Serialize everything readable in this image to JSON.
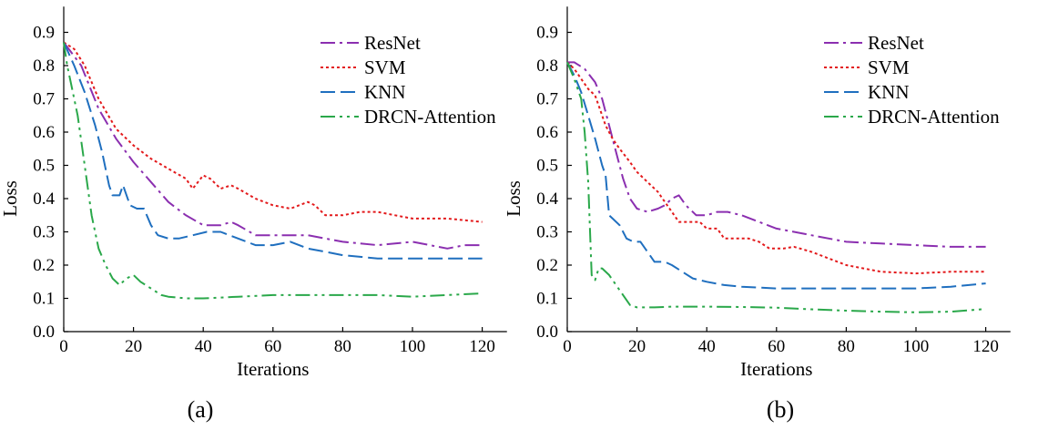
{
  "chart_data": [
    {
      "type": "line",
      "caption": "(a)",
      "xlabel": "Iterations",
      "ylabel": "Loss",
      "xlim": [
        0,
        125
      ],
      "ylim": [
        0,
        0.95
      ],
      "xticks": [
        0,
        20,
        40,
        60,
        80,
        100,
        120
      ],
      "yticks": [
        0.0,
        0.1,
        0.2,
        0.3,
        0.4,
        0.5,
        0.6,
        0.7,
        0.8,
        0.9
      ],
      "legend_position": "top-right",
      "series": [
        {
          "name": "ResNet",
          "color": "#8b2fb0",
          "dash": "16,5,3,5",
          "points": [
            [
              0,
              0.87
            ],
            [
              5,
              0.8
            ],
            [
              10,
              0.67
            ],
            [
              15,
              0.58
            ],
            [
              20,
              0.51
            ],
            [
              25,
              0.45
            ],
            [
              30,
              0.39
            ],
            [
              35,
              0.35
            ],
            [
              40,
              0.32
            ],
            [
              45,
              0.32
            ],
            [
              48,
              0.33
            ],
            [
              50,
              0.32
            ],
            [
              55,
              0.29
            ],
            [
              60,
              0.29
            ],
            [
              65,
              0.29
            ],
            [
              70,
              0.29
            ],
            [
              75,
              0.28
            ],
            [
              80,
              0.27
            ],
            [
              90,
              0.26
            ],
            [
              100,
              0.27
            ],
            [
              105,
              0.26
            ],
            [
              110,
              0.25
            ],
            [
              115,
              0.26
            ],
            [
              120,
              0.26
            ]
          ]
        },
        {
          "name": "SVM",
          "color": "#e31a1c",
          "dash": "3,3",
          "points": [
            [
              0,
              0.87
            ],
            [
              3,
              0.85
            ],
            [
              6,
              0.8
            ],
            [
              10,
              0.7
            ],
            [
              15,
              0.61
            ],
            [
              20,
              0.56
            ],
            [
              25,
              0.52
            ],
            [
              30,
              0.49
            ],
            [
              35,
              0.46
            ],
            [
              37,
              0.43
            ],
            [
              40,
              0.47
            ],
            [
              42,
              0.46
            ],
            [
              45,
              0.43
            ],
            [
              48,
              0.44
            ],
            [
              50,
              0.43
            ],
            [
              55,
              0.4
            ],
            [
              60,
              0.38
            ],
            [
              65,
              0.37
            ],
            [
              70,
              0.39
            ],
            [
              72,
              0.38
            ],
            [
              75,
              0.35
            ],
            [
              80,
              0.35
            ],
            [
              85,
              0.36
            ],
            [
              90,
              0.36
            ],
            [
              95,
              0.35
            ],
            [
              100,
              0.34
            ],
            [
              110,
              0.34
            ],
            [
              120,
              0.33
            ]
          ]
        },
        {
          "name": "KNN",
          "color": "#1f6fbf",
          "dash": "16,6",
          "points": [
            [
              0,
              0.87
            ],
            [
              3,
              0.8
            ],
            [
              6,
              0.72
            ],
            [
              9,
              0.62
            ],
            [
              11,
              0.54
            ],
            [
              13,
              0.44
            ],
            [
              14,
              0.41
            ],
            [
              16,
              0.41
            ],
            [
              17,
              0.44
            ],
            [
              19,
              0.38
            ],
            [
              21,
              0.37
            ],
            [
              23,
              0.37
            ],
            [
              25,
              0.32
            ],
            [
              27,
              0.29
            ],
            [
              30,
              0.28
            ],
            [
              33,
              0.28
            ],
            [
              37,
              0.29
            ],
            [
              41,
              0.3
            ],
            [
              45,
              0.3
            ],
            [
              50,
              0.28
            ],
            [
              55,
              0.26
            ],
            [
              60,
              0.26
            ],
            [
              65,
              0.27
            ],
            [
              70,
              0.25
            ],
            [
              75,
              0.24
            ],
            [
              80,
              0.23
            ],
            [
              90,
              0.22
            ],
            [
              100,
              0.22
            ],
            [
              110,
              0.22
            ],
            [
              120,
              0.22
            ]
          ]
        },
        {
          "name": "DRCN-Attention",
          "color": "#2aa84a",
          "dash": "16,5,3,5,3,5",
          "points": [
            [
              0,
              0.87
            ],
            [
              1,
              0.8
            ],
            [
              2,
              0.75
            ],
            [
              4,
              0.65
            ],
            [
              6,
              0.5
            ],
            [
              8,
              0.35
            ],
            [
              10,
              0.25
            ],
            [
              12,
              0.2
            ],
            [
              14,
              0.16
            ],
            [
              16,
              0.14
            ],
            [
              18,
              0.16
            ],
            [
              20,
              0.17
            ],
            [
              22,
              0.15
            ],
            [
              25,
              0.13
            ],
            [
              28,
              0.11
            ],
            [
              30,
              0.105
            ],
            [
              35,
              0.1
            ],
            [
              40,
              0.1
            ],
            [
              50,
              0.105
            ],
            [
              60,
              0.11
            ],
            [
              70,
              0.11
            ],
            [
              80,
              0.11
            ],
            [
              90,
              0.11
            ],
            [
              100,
              0.105
            ],
            [
              110,
              0.11
            ],
            [
              120,
              0.115
            ]
          ]
        }
      ]
    },
    {
      "type": "line",
      "caption": "(b)",
      "xlabel": "Iterations",
      "ylabel": "Loss",
      "xlim": [
        0,
        125
      ],
      "ylim": [
        0,
        0.95
      ],
      "xticks": [
        0,
        20,
        40,
        60,
        80,
        100,
        120
      ],
      "yticks": [
        0.0,
        0.1,
        0.2,
        0.3,
        0.4,
        0.5,
        0.6,
        0.7,
        0.8,
        0.9
      ],
      "legend_position": "top-right",
      "series": [
        {
          "name": "ResNet",
          "color": "#8b2fb0",
          "dash": "16,5,3,5",
          "points": [
            [
              0,
              0.81
            ],
            [
              2,
              0.81
            ],
            [
              5,
              0.79
            ],
            [
              8,
              0.75
            ],
            [
              10,
              0.7
            ],
            [
              12,
              0.62
            ],
            [
              14,
              0.54
            ],
            [
              16,
              0.46
            ],
            [
              18,
              0.4
            ],
            [
              20,
              0.37
            ],
            [
              23,
              0.36
            ],
            [
              26,
              0.37
            ],
            [
              28,
              0.38
            ],
            [
              30,
              0.4
            ],
            [
              32,
              0.41
            ],
            [
              34,
              0.38
            ],
            [
              37,
              0.35
            ],
            [
              40,
              0.35
            ],
            [
              43,
              0.36
            ],
            [
              46,
              0.36
            ],
            [
              50,
              0.35
            ],
            [
              55,
              0.33
            ],
            [
              60,
              0.31
            ],
            [
              65,
              0.3
            ],
            [
              70,
              0.29
            ],
            [
              80,
              0.27
            ],
            [
              90,
              0.265
            ],
            [
              100,
              0.26
            ],
            [
              110,
              0.255
            ],
            [
              120,
              0.255
            ]
          ]
        },
        {
          "name": "SVM",
          "color": "#e31a1c",
          "dash": "3,3",
          "points": [
            [
              0,
              0.81
            ],
            [
              2,
              0.79
            ],
            [
              4,
              0.76
            ],
            [
              6,
              0.73
            ],
            [
              8,
              0.71
            ],
            [
              9,
              0.68
            ],
            [
              11,
              0.62
            ],
            [
              13,
              0.58
            ],
            [
              15,
              0.55
            ],
            [
              18,
              0.51
            ],
            [
              20,
              0.48
            ],
            [
              23,
              0.45
            ],
            [
              26,
              0.42
            ],
            [
              28,
              0.39
            ],
            [
              30,
              0.36
            ],
            [
              32,
              0.33
            ],
            [
              35,
              0.33
            ],
            [
              38,
              0.33
            ],
            [
              40,
              0.31
            ],
            [
              43,
              0.31
            ],
            [
              45,
              0.28
            ],
            [
              48,
              0.28
            ],
            [
              52,
              0.28
            ],
            [
              55,
              0.27
            ],
            [
              58,
              0.25
            ],
            [
              62,
              0.25
            ],
            [
              65,
              0.255
            ],
            [
              70,
              0.24
            ],
            [
              75,
              0.22
            ],
            [
              80,
              0.2
            ],
            [
              90,
              0.18
            ],
            [
              100,
              0.175
            ],
            [
              110,
              0.18
            ],
            [
              120,
              0.18
            ]
          ]
        },
        {
          "name": "KNN",
          "color": "#1f6fbf",
          "dash": "16,6",
          "points": [
            [
              0,
              0.81
            ],
            [
              2,
              0.77
            ],
            [
              4,
              0.72
            ],
            [
              6,
              0.65
            ],
            [
              8,
              0.58
            ],
            [
              10,
              0.5
            ],
            [
              11,
              0.47
            ],
            [
              12,
              0.35
            ],
            [
              13,
              0.34
            ],
            [
              15,
              0.32
            ],
            [
              17,
              0.28
            ],
            [
              19,
              0.27
            ],
            [
              21,
              0.27
            ],
            [
              23,
              0.24
            ],
            [
              25,
              0.21
            ],
            [
              28,
              0.21
            ],
            [
              30,
              0.2
            ],
            [
              33,
              0.18
            ],
            [
              36,
              0.16
            ],
            [
              40,
              0.15
            ],
            [
              45,
              0.14
            ],
            [
              50,
              0.135
            ],
            [
              60,
              0.13
            ],
            [
              70,
              0.13
            ],
            [
              80,
              0.13
            ],
            [
              90,
              0.13
            ],
            [
              100,
              0.13
            ],
            [
              110,
              0.135
            ],
            [
              120,
              0.145
            ]
          ]
        },
        {
          "name": "DRCN-Attention",
          "color": "#2aa84a",
          "dash": "16,5,3,5,3,5",
          "points": [
            [
              0,
              0.81
            ],
            [
              2,
              0.76
            ],
            [
              4,
              0.7
            ],
            [
              5,
              0.6
            ],
            [
              6,
              0.45
            ],
            [
              7,
              0.17
            ],
            [
              8,
              0.155
            ],
            [
              9,
              0.19
            ],
            [
              10,
              0.19
            ],
            [
              12,
              0.17
            ],
            [
              14,
              0.14
            ],
            [
              16,
              0.11
            ],
            [
              18,
              0.08
            ],
            [
              20,
              0.073
            ],
            [
              25,
              0.073
            ],
            [
              30,
              0.075
            ],
            [
              40,
              0.075
            ],
            [
              50,
              0.074
            ],
            [
              60,
              0.072
            ],
            [
              70,
              0.067
            ],
            [
              80,
              0.063
            ],
            [
              90,
              0.06
            ],
            [
              100,
              0.058
            ],
            [
              110,
              0.06
            ],
            [
              120,
              0.068
            ]
          ]
        }
      ]
    }
  ]
}
